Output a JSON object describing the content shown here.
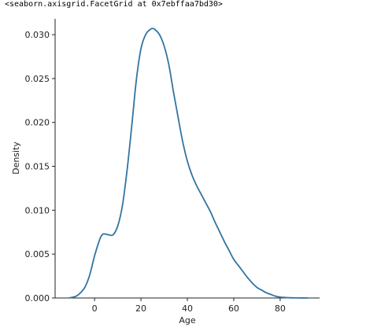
{
  "output_repr": "<seaborn.axisgrid.FacetGrid at 0x7ebffaa7bd30>",
  "chart_data": {
    "type": "line",
    "kind": "kde",
    "title": "",
    "xlabel": "Age",
    "ylabel": "Density",
    "xlim": [
      -17,
      97
    ],
    "ylim": [
      0,
      0.0318
    ],
    "x_ticks": [
      0,
      20,
      40,
      60,
      80
    ],
    "x_tick_labels": [
      "0",
      "20",
      "40",
      "60",
      "80"
    ],
    "y_ticks": [
      0.0,
      0.005,
      0.01,
      0.015,
      0.02,
      0.025,
      0.03
    ],
    "y_tick_labels": [
      "0.000",
      "0.005",
      "0.010",
      "0.015",
      "0.020",
      "0.025",
      "0.030"
    ],
    "grid": false,
    "line_color": "#3274a1",
    "series": [
      {
        "x": [
          -11,
          -8,
          -6,
          -4,
          -2,
          0,
          2,
          3,
          4,
          6,
          8,
          10,
          12,
          14,
          16,
          18,
          20,
          22,
          24,
          25,
          26,
          28,
          30,
          32,
          34,
          36,
          38,
          40,
          42,
          44,
          46,
          48,
          50,
          52,
          54,
          56,
          58,
          60,
          62,
          64,
          66,
          68,
          70,
          72,
          74,
          76,
          78,
          80,
          84,
          88,
          92
        ],
        "y": [
          0.0,
          0.0002,
          0.0006,
          0.0013,
          0.0027,
          0.0048,
          0.0065,
          0.0071,
          0.0073,
          0.0072,
          0.0072,
          0.0082,
          0.0105,
          0.0145,
          0.0195,
          0.0248,
          0.0284,
          0.03,
          0.0306,
          0.0307,
          0.0306,
          0.03,
          0.0287,
          0.0266,
          0.0235,
          0.0206,
          0.0178,
          0.0156,
          0.014,
          0.0128,
          0.0118,
          0.0108,
          0.0098,
          0.0086,
          0.0075,
          0.0064,
          0.0054,
          0.0044,
          0.0037,
          0.003,
          0.0023,
          0.0017,
          0.0012,
          0.0009,
          0.0006,
          0.0004,
          0.0002,
          0.0001,
          3e-05,
          1e-05,
          0.0
        ]
      }
    ]
  }
}
